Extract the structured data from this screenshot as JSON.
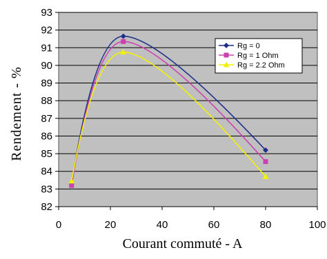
{
  "chart_data": {
    "type": "line",
    "xlabel": "Courant commuté - A",
    "ylabel": "Rendement - %",
    "xlim": [
      0,
      100
    ],
    "ylim": [
      82,
      93
    ],
    "x_ticks": [
      0,
      20,
      40,
      60,
      80,
      100
    ],
    "y_ticks": [
      82,
      83,
      84,
      85,
      86,
      87,
      88,
      89,
      90,
      91,
      92,
      93
    ],
    "grid": "horizontal",
    "legend_position": "top-right",
    "plot_background": "#c0c0c0",
    "series": [
      {
        "name": "Rg = 0",
        "color": "#1f2f8a",
        "marker": "diamond",
        "x": [
          5,
          25,
          80
        ],
        "y": [
          83.3,
          91.65,
          85.2
        ]
      },
      {
        "name": "Rg = 1 Ohm",
        "color": "#cc40b0",
        "marker": "square",
        "x": [
          5,
          25,
          80
        ],
        "y": [
          83.2,
          91.35,
          84.55
        ]
      },
      {
        "name": "Rg = 2.2 Ohm",
        "color": "#f2f200",
        "marker": "triangle",
        "x": [
          5,
          25,
          80
        ],
        "y": [
          83.45,
          90.75,
          83.7
        ]
      }
    ]
  }
}
